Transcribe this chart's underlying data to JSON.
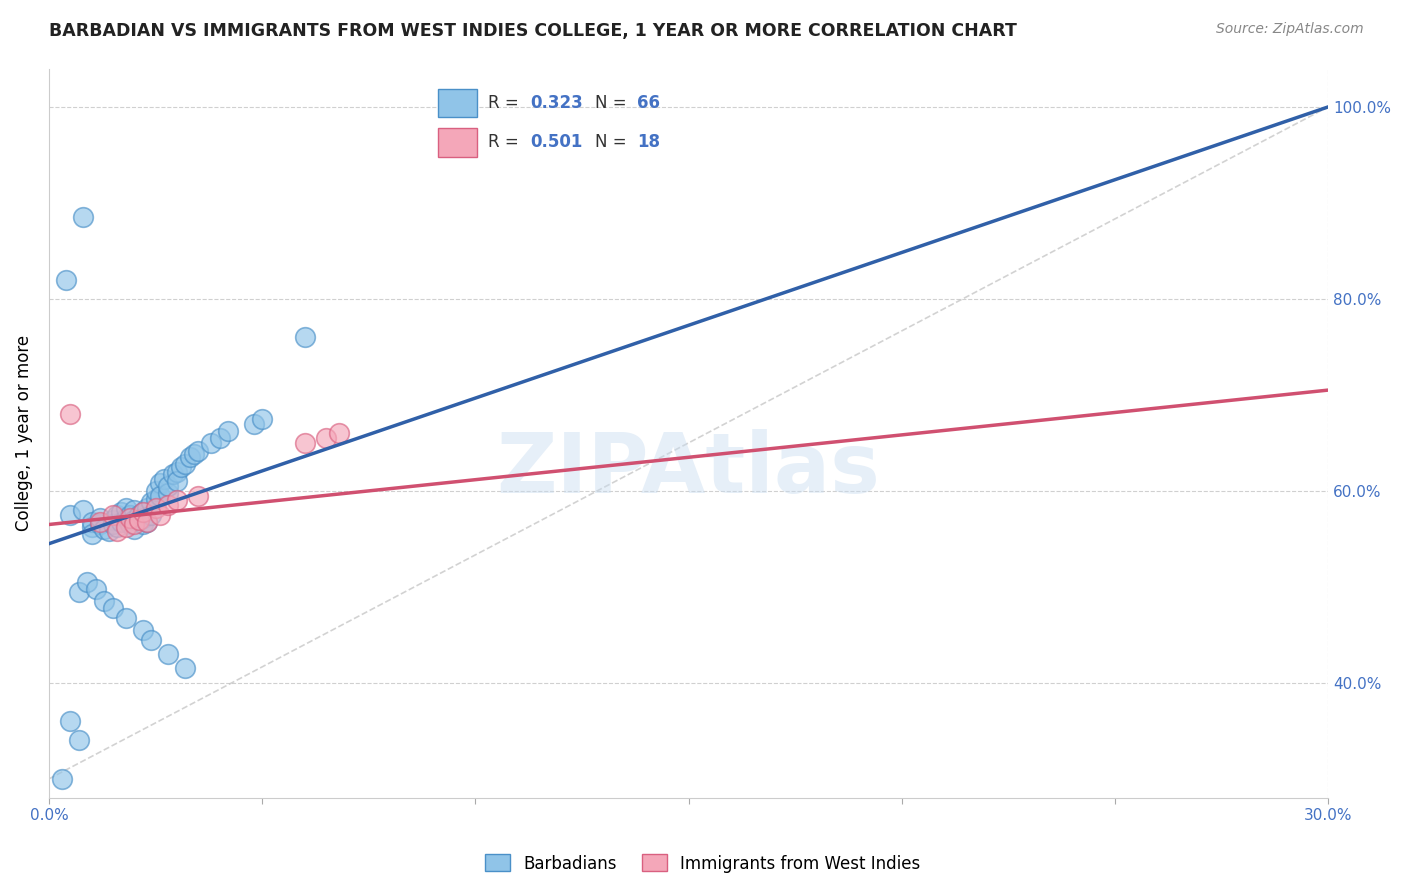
{
  "title": "BARBADIAN VS IMMIGRANTS FROM WEST INDIES COLLEGE, 1 YEAR OR MORE CORRELATION CHART",
  "source": "Source: ZipAtlas.com",
  "watermark": "ZIPAtlas",
  "ylabel": "College, 1 year or more",
  "xlim": [
    0.0,
    0.3
  ],
  "ylim": [
    0.28,
    1.04
  ],
  "xticks": [
    0.0,
    0.05,
    0.1,
    0.15,
    0.2,
    0.25,
    0.3
  ],
  "xticklabels": [
    "0.0%",
    "",
    "",
    "",
    "",
    "",
    "30.0%"
  ],
  "yticks": [
    0.3,
    0.4,
    0.5,
    0.6,
    0.7,
    0.8,
    0.9,
    1.0
  ],
  "yticklabels_right": [
    "",
    "40.0%",
    "",
    "60.0%",
    "",
    "80.0%",
    "",
    "100.0%"
  ],
  "blue_color": "#90c4e8",
  "pink_color": "#f4a7b9",
  "blue_edge_color": "#4a90c8",
  "pink_edge_color": "#d96080",
  "blue_line_color": "#3060a8",
  "pink_line_color": "#d05070",
  "ref_line_color": "#c0c0c0",
  "grid_color": "#d0d0d0",
  "blue_trend_y0": 0.545,
  "blue_trend_y1": 1.0,
  "pink_trend_y0": 0.565,
  "pink_trend_y1": 0.705,
  "blue_x": [
    0.005,
    0.008,
    0.01,
    0.01,
    0.01,
    0.012,
    0.012,
    0.013,
    0.014,
    0.015,
    0.015,
    0.016,
    0.016,
    0.017,
    0.017,
    0.018,
    0.018,
    0.019,
    0.019,
    0.02,
    0.02,
    0.02,
    0.021,
    0.022,
    0.022,
    0.022,
    0.023,
    0.023,
    0.024,
    0.024,
    0.025,
    0.025,
    0.026,
    0.026,
    0.027,
    0.028,
    0.028,
    0.029,
    0.03,
    0.03,
    0.031,
    0.032,
    0.033,
    0.034,
    0.035,
    0.038,
    0.04,
    0.042,
    0.048,
    0.05,
    0.007,
    0.009,
    0.011,
    0.013,
    0.015,
    0.018,
    0.022,
    0.024,
    0.028,
    0.032,
    0.005,
    0.007,
    0.06,
    0.008,
    0.004,
    0.003
  ],
  "blue_y": [
    0.575,
    0.58,
    0.562,
    0.568,
    0.555,
    0.565,
    0.572,
    0.56,
    0.558,
    0.57,
    0.565,
    0.575,
    0.562,
    0.568,
    0.578,
    0.572,
    0.582,
    0.565,
    0.575,
    0.58,
    0.57,
    0.56,
    0.575,
    0.578,
    0.565,
    0.572,
    0.582,
    0.568,
    0.588,
    0.575,
    0.592,
    0.6,
    0.608,
    0.595,
    0.612,
    0.598,
    0.605,
    0.618,
    0.62,
    0.61,
    0.625,
    0.628,
    0.635,
    0.638,
    0.642,
    0.65,
    0.655,
    0.662,
    0.67,
    0.675,
    0.495,
    0.505,
    0.498,
    0.485,
    0.478,
    0.468,
    0.455,
    0.445,
    0.43,
    0.415,
    0.36,
    0.34,
    0.76,
    0.885,
    0.82,
    0.3
  ],
  "pink_x": [
    0.005,
    0.012,
    0.015,
    0.016,
    0.018,
    0.019,
    0.02,
    0.021,
    0.022,
    0.023,
    0.025,
    0.026,
    0.028,
    0.03,
    0.035,
    0.06,
    0.065,
    0.068
  ],
  "pink_y": [
    0.68,
    0.568,
    0.575,
    0.558,
    0.562,
    0.572,
    0.565,
    0.57,
    0.578,
    0.568,
    0.582,
    0.575,
    0.585,
    0.59,
    0.595,
    0.65,
    0.655,
    0.66
  ]
}
